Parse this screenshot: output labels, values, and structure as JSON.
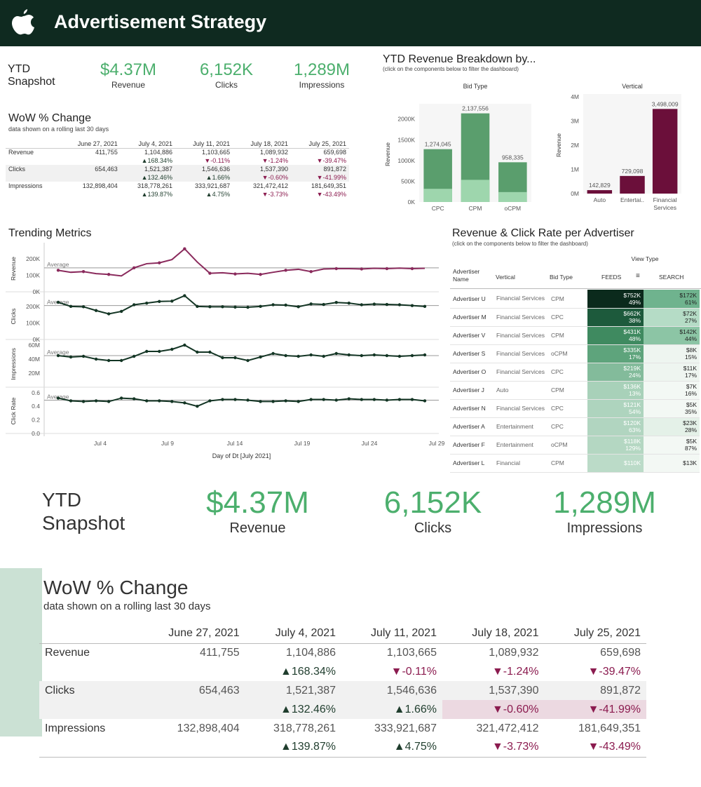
{
  "header": {
    "title": "Advertisement Strategy",
    "logo": "apple-icon"
  },
  "snapshot": {
    "title_line1": "YTD",
    "title_line2": "Snapshot",
    "kpis": [
      {
        "value": "$4.37M",
        "label": "Revenue"
      },
      {
        "value": "6,152K",
        "label": "Clicks"
      },
      {
        "value": "1,289M",
        "label": "Impressions"
      }
    ]
  },
  "wow": {
    "title": "WoW % Change",
    "subtitle": "data shown on a rolling last 30 days",
    "columns": [
      "June 27, 2021",
      "July 4, 2021",
      "July 11, 2021",
      "July 18, 2021",
      "July 25, 2021"
    ],
    "rows": [
      {
        "label": "Revenue",
        "values": [
          "411,755",
          "1,104,886",
          "1,103,665",
          "1,089,932",
          "659,698"
        ],
        "changes": [
          "",
          "▲168.34%",
          "▼-0.11%",
          "▼-1.24%",
          "▼-39.47%"
        ]
      },
      {
        "label": "Clicks",
        "values": [
          "654,463",
          "1,521,387",
          "1,546,636",
          "1,537,390",
          "891,872"
        ],
        "changes": [
          "",
          "▲132.46%",
          "▲1.66%",
          "▼-0.60%",
          "▼-41.99%"
        ]
      },
      {
        "label": "Impressions",
        "values": [
          "132,898,404",
          "318,778,261",
          "333,921,687",
          "321,472,412",
          "181,649,351"
        ],
        "changes": [
          "",
          "▲139.87%",
          "▲4.75%",
          "▼-3.73%",
          "▼-43.49%"
        ]
      }
    ]
  },
  "breakdown": {
    "title": "YTD Revenue Breakdown by...",
    "subtitle": "(click on the components below to filter the dashboard)"
  },
  "trending": {
    "title": "Trending Metrics",
    "xlabel": "Day of Dt [July 2021]",
    "avg_label": "Average",
    "x_ticks": [
      "Jul 4",
      "Jul 9",
      "Jul 14",
      "Jul 19",
      "Jul 24",
      "Jul 29"
    ],
    "panels": [
      {
        "label": "Revenue",
        "ticks": [
          "200K",
          "100K",
          "0K"
        ]
      },
      {
        "label": "Clicks",
        "ticks": [
          "200K",
          "100K",
          "0K"
        ]
      },
      {
        "label": "Impressions",
        "ticks": [
          "60M",
          "40M",
          "20M"
        ]
      },
      {
        "label": "Click Rate",
        "ticks": [
          "0.6",
          "0.4",
          "0.2",
          "0.0"
        ]
      }
    ]
  },
  "advertisers": {
    "title": "Revenue & Click Rate per Advertiser",
    "subtitle": "(click on the components below to filter the dashboard)",
    "view_type": "View Type",
    "headers": [
      "Advertiser Name",
      "Vertical",
      "Bid Type",
      "FEEDS",
      "SEARCH"
    ],
    "rows": [
      {
        "name": "Advertiser U",
        "vertical": "Financial Services",
        "bid": "CPM",
        "feeds": "$752K",
        "feeds_rate": "49%",
        "search": "$172K",
        "search_rate": "61%",
        "fcol": "#0b2a1c",
        "scol": "#6fb38e"
      },
      {
        "name": "Advertiser M",
        "vertical": "Financial Services",
        "bid": "CPC",
        "feeds": "$662K",
        "feeds_rate": "38%",
        "search": "$72K",
        "search_rate": "27%",
        "fcol": "#1d5a3c",
        "scol": "#b5dcc6"
      },
      {
        "name": "Advertiser V",
        "vertical": "Financial Services",
        "bid": "CPM",
        "feeds": "$431K",
        "feeds_rate": "48%",
        "search": "$142K",
        "search_rate": "44%",
        "fcol": "#3f8a60",
        "scol": "#8cc5a5"
      },
      {
        "name": "Advertiser S",
        "vertical": "Financial Services",
        "bid": "oCPM",
        "feeds": "$335K",
        "feeds_rate": "17%",
        "search": "$8K",
        "search_rate": "15%",
        "fcol": "#5ea47c",
        "scol": "#eef5f0"
      },
      {
        "name": "Advertiser O",
        "vertical": "Financial Services",
        "bid": "CPC",
        "feeds": "$219K",
        "feeds_rate": "24%",
        "search": "$11K",
        "search_rate": "17%",
        "fcol": "#83bb9b",
        "scol": "#eef5f0"
      },
      {
        "name": "Advertiser J",
        "vertical": "Auto",
        "bid": "CPM",
        "feeds": "$136K",
        "feeds_rate": "13%",
        "search": "$7K",
        "search_rate": "16%",
        "fcol": "#a8d1b9",
        "scol": "#f3f8f4"
      },
      {
        "name": "Advertiser N",
        "vertical": "Financial Services",
        "bid": "CPC",
        "feeds": "$121K",
        "feeds_rate": "54%",
        "search": "$5K",
        "search_rate": "35%",
        "fcol": "#aed4be",
        "scol": "#f3f8f4"
      },
      {
        "name": "Advertiser A",
        "vertical": "Entertainment",
        "bid": "CPC",
        "feeds": "$120K",
        "feeds_rate": "63%",
        "search": "$23K",
        "search_rate": "28%",
        "fcol": "#b1d5c0",
        "scol": "#e4f1e8"
      },
      {
        "name": "Advertiser F",
        "vertical": "Entertainment",
        "bid": "oCPM",
        "feeds": "$118K",
        "feeds_rate": "129%",
        "search": "$5K",
        "search_rate": "87%",
        "fcol": "#b4d7c2",
        "scol": "#f3f8f4"
      },
      {
        "name": "Advertiser L",
        "vertical": "Financial",
        "bid": "CPM",
        "feeds": "$110K",
        "feeds_rate": "",
        "search": "$13K",
        "search_rate": "",
        "fcol": "#bbdbc8",
        "scol": "#f3f8f4"
      }
    ]
  },
  "chart_data": [
    {
      "type": "bar",
      "title": "Bid Type",
      "ylabel": "Revenue",
      "categories": [
        "CPC",
        "CPM",
        "oCPM"
      ],
      "values": [
        1274045,
        2137556,
        958335
      ],
      "value_labels": [
        "1,274,045",
        "2,137,556",
        "958,335"
      ],
      "ytick_labels": [
        "0K",
        "500K",
        "1000K",
        "1500K",
        "2000K"
      ],
      "ylim": [
        0,
        2300000
      ]
    },
    {
      "type": "bar",
      "title": "Vertical",
      "ylabel": "Revenue",
      "categories": [
        "Auto",
        "Entertai..",
        "Financial Services"
      ],
      "values": [
        142829,
        729098,
        3498009
      ],
      "value_labels": [
        "142,829",
        "729,098",
        "3,498,009"
      ],
      "ytick_labels": [
        "0M",
        "1M",
        "2M",
        "3M",
        "4M"
      ],
      "ylim": [
        0,
        4000000
      ]
    },
    {
      "type": "line",
      "title": "Revenue",
      "days": [
        1,
        2,
        3,
        4,
        5,
        6,
        7,
        8,
        9,
        10,
        11,
        12,
        13,
        14,
        15,
        16,
        17,
        18,
        19,
        20,
        21,
        22,
        23,
        24,
        25,
        26,
        27,
        28,
        29,
        30
      ],
      "values": [
        130000,
        118000,
        122000,
        110000,
        105000,
        96000,
        145000,
        170000,
        175000,
        195000,
        260000,
        180000,
        112000,
        115000,
        108000,
        112000,
        105000,
        118000,
        130000,
        136000,
        122000,
        138000,
        140000,
        140000,
        138000,
        142000,
        140000,
        143000,
        140000,
        142000
      ]
    },
    {
      "type": "line",
      "title": "Clicks",
      "days": [
        1,
        2,
        3,
        4,
        5,
        6,
        7,
        8,
        9,
        10,
        11,
        12,
        13,
        14,
        15,
        16,
        17,
        18,
        19,
        20,
        21,
        22,
        23,
        24,
        25,
        26,
        27,
        28,
        29,
        30
      ],
      "values": [
        225000,
        200000,
        198000,
        175000,
        155000,
        170000,
        210000,
        220000,
        230000,
        232000,
        265000,
        200000,
        198000,
        198000,
        196000,
        195000,
        200000,
        210000,
        208000,
        198000,
        215000,
        212000,
        224000,
        220000,
        210000,
        214000,
        212000,
        210000,
        205000,
        200000
      ]
    },
    {
      "type": "line",
      "title": "Impressions",
      "days": [
        1,
        2,
        3,
        4,
        5,
        6,
        7,
        8,
        9,
        10,
        11,
        12,
        13,
        14,
        15,
        16,
        17,
        18,
        19,
        20,
        21,
        22,
        23,
        24,
        25,
        26,
        27,
        28,
        29,
        30
      ],
      "values": [
        45000000,
        43000000,
        44000000,
        40000000,
        38000000,
        38000000,
        44000000,
        51000000,
        51000000,
        54000000,
        60000000,
        50000000,
        50000000,
        42000000,
        42000000,
        38000000,
        43000000,
        48000000,
        45000000,
        44000000,
        46000000,
        44000000,
        48000000,
        46000000,
        45000000,
        46000000,
        45000000,
        44000000,
        45000000,
        46000000
      ]
    },
    {
      "type": "line",
      "title": "Click Rate",
      "days": [
        1,
        2,
        3,
        4,
        5,
        6,
        7,
        8,
        9,
        10,
        11,
        12,
        13,
        14,
        15,
        16,
        17,
        18,
        19,
        20,
        21,
        22,
        23,
        24,
        25,
        26,
        27,
        28,
        29,
        30
      ],
      "values": [
        0.52,
        0.48,
        0.47,
        0.48,
        0.47,
        0.52,
        0.51,
        0.48,
        0.48,
        0.47,
        0.45,
        0.4,
        0.48,
        0.5,
        0.5,
        0.49,
        0.47,
        0.47,
        0.48,
        0.47,
        0.5,
        0.5,
        0.49,
        0.51,
        0.5,
        0.5,
        0.49,
        0.5,
        0.5,
        0.48
      ]
    }
  ],
  "colors": {
    "header": "#0f2a20",
    "green": "#4caf6d",
    "dark_green": "#1f3d2d",
    "maroon": "#6b0f3a",
    "bar_green": "#5a9e6d",
    "bar_light": "#9ed6ad"
  }
}
